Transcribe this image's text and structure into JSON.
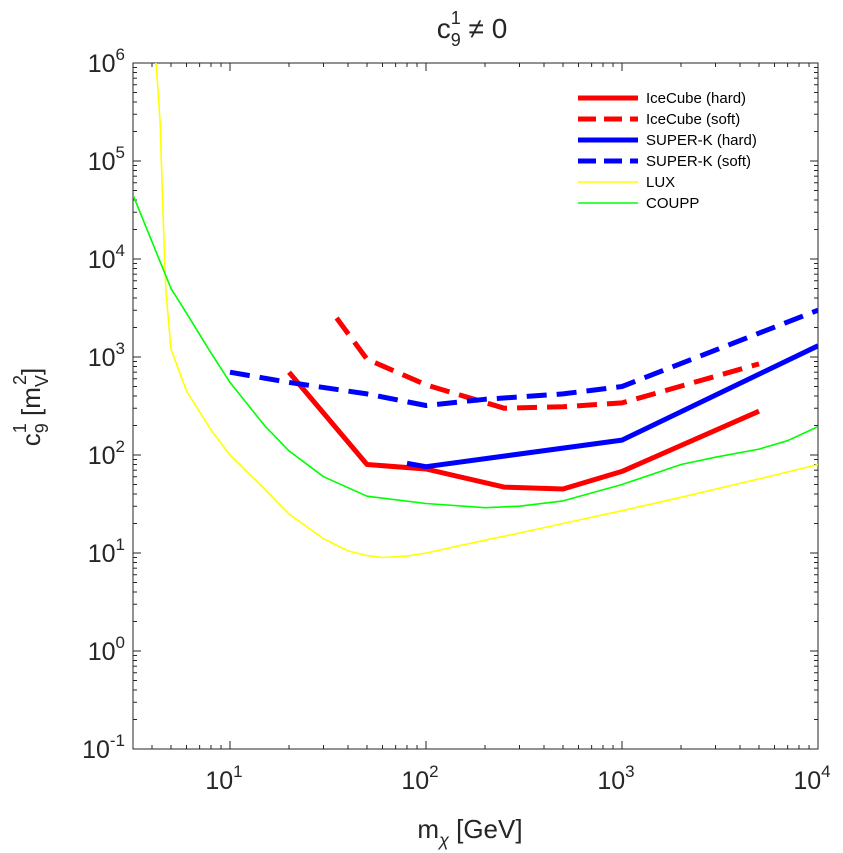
{
  "chart_data": {
    "type": "line",
    "title": {
      "main": "c",
      "sub": "9",
      "sup": "1",
      "tail": " ≠ 0"
    },
    "xlabel": {
      "main": "m",
      "sub": "χ",
      "tail": " [GeV]"
    },
    "ylabel": {
      "main": "c",
      "sub": "9",
      "sup": "1",
      "mid": " [m",
      "sub2": "V",
      "sup2": "2",
      "tail": "]"
    },
    "xscale": "log",
    "yscale": "log",
    "xlim": [
      3.2,
      10000
    ],
    "ylim": [
      0.1,
      1000000
    ],
    "x_ticks": [
      {
        "value": 10,
        "base": "10",
        "exp": "1"
      },
      {
        "value": 100,
        "base": "10",
        "exp": "2"
      },
      {
        "value": 1000,
        "base": "10",
        "exp": "3"
      },
      {
        "value": 10000,
        "base": "10",
        "exp": "4"
      }
    ],
    "y_ticks": [
      {
        "value": 0.1,
        "base": "10",
        "exp": "-1"
      },
      {
        "value": 1,
        "base": "10",
        "exp": "0"
      },
      {
        "value": 10,
        "base": "10",
        "exp": "1"
      },
      {
        "value": 100,
        "base": "10",
        "exp": "2"
      },
      {
        "value": 1000,
        "base": "10",
        "exp": "3"
      },
      {
        "value": 10000,
        "base": "10",
        "exp": "4"
      },
      {
        "value": 100000,
        "base": "10",
        "exp": "5"
      },
      {
        "value": 1000000,
        "base": "10",
        "exp": "6"
      }
    ],
    "grid": false,
    "legend_position": "top-right",
    "series": [
      {
        "name": "IceCube (hard)",
        "color": "#ff0000",
        "style": "solid",
        "weight": "thick",
        "x": [
          20,
          50,
          100,
          250,
          500,
          1000,
          5000
        ],
        "y": [
          700,
          80,
          72,
          47,
          45,
          68,
          280
        ]
      },
      {
        "name": "IceCube (soft)",
        "color": "#ff0000",
        "style": "dashed",
        "weight": "thick",
        "x": [
          35,
          50,
          100,
          250,
          500,
          1000,
          5000
        ],
        "y": [
          2500,
          950,
          520,
          300,
          310,
          340,
          850
        ]
      },
      {
        "name": "SUPER-K (hard)",
        "color": "#0000ff",
        "style": "solid",
        "weight": "thick",
        "x": [
          80,
          100,
          1000,
          10000
        ],
        "y": [
          82,
          76,
          142,
          1300
        ]
      },
      {
        "name": "SUPER-K (soft)",
        "color": "#0000ff",
        "style": "dashed",
        "weight": "thick",
        "x": [
          10,
          20,
          50,
          100,
          200,
          500,
          1000,
          10000
        ],
        "y": [
          700,
          550,
          420,
          320,
          370,
          420,
          500,
          3000
        ]
      },
      {
        "name": "LUX",
        "color": "#ffff00",
        "style": "solid",
        "weight": "thin",
        "x": [
          4.2,
          4.4,
          4.55,
          4.7,
          5,
          6,
          8,
          10,
          15,
          20,
          30,
          40,
          50,
          60,
          80,
          100,
          200,
          300,
          500,
          1000,
          2000,
          5000,
          10000
        ],
        "y": [
          1000000,
          250000,
          30000,
          5000,
          1200,
          450,
          180,
          100,
          45,
          25,
          14,
          10.5,
          9.4,
          9,
          9.3,
          10,
          13.5,
          16,
          20,
          27,
          37,
          57,
          80
        ]
      },
      {
        "name": "COUPP",
        "color": "#00ff00",
        "style": "solid",
        "weight": "thin",
        "x": [
          3.2,
          4,
          5,
          6,
          8,
          10,
          15,
          20,
          30,
          50,
          100,
          200,
          300,
          500,
          1000,
          2000,
          3000,
          5000,
          7000,
          10000
        ],
        "y": [
          45000,
          15000,
          5000,
          2800,
          1100,
          550,
          200,
          110,
          60,
          38,
          32,
          29,
          30,
          34,
          50,
          80,
          95,
          115,
          140,
          195
        ]
      }
    ]
  }
}
